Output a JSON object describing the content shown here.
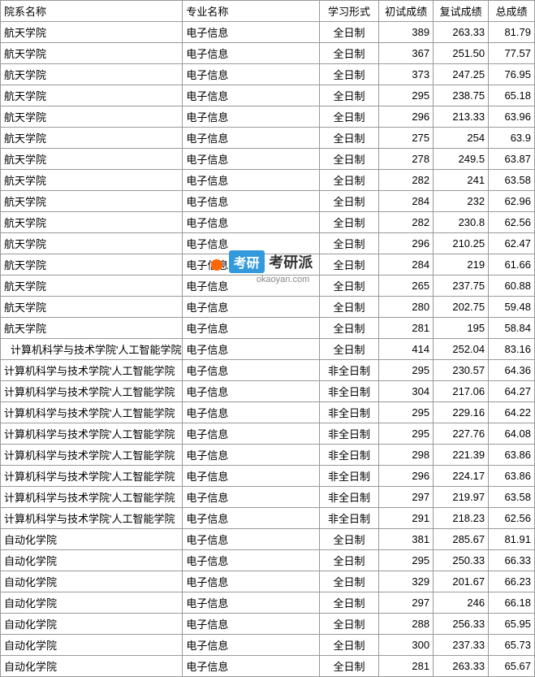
{
  "headers": {
    "dept": "院系名称",
    "major": "专业名称",
    "mode": "学习形式",
    "score1": "初试成绩",
    "score2": "复试成绩",
    "total": "总成绩"
  },
  "rows": [
    {
      "dept": "航天学院",
      "major": "电子信息",
      "mode": "全日制",
      "s1": "389",
      "s2": "263.33",
      "tot": "81.79",
      "indent": false
    },
    {
      "dept": "航天学院",
      "major": "电子信息",
      "mode": "全日制",
      "s1": "367",
      "s2": "251.50",
      "tot": "77.57",
      "indent": false
    },
    {
      "dept": "航天学院",
      "major": "电子信息",
      "mode": "全日制",
      "s1": "373",
      "s2": "247.25",
      "tot": "76.95",
      "indent": false
    },
    {
      "dept": "航天学院",
      "major": "电子信息",
      "mode": "全日制",
      "s1": "295",
      "s2": "238.75",
      "tot": "65.18",
      "indent": false
    },
    {
      "dept": "航天学院",
      "major": "电子信息",
      "mode": "全日制",
      "s1": "296",
      "s2": "213.33",
      "tot": "63.96",
      "indent": false
    },
    {
      "dept": "航天学院",
      "major": "电子信息",
      "mode": "全日制",
      "s1": "275",
      "s2": "254",
      "tot": "63.9",
      "indent": false
    },
    {
      "dept": "航天学院",
      "major": "电子信息",
      "mode": "全日制",
      "s1": "278",
      "s2": "249.5",
      "tot": "63.87",
      "indent": false
    },
    {
      "dept": "航天学院",
      "major": "电子信息",
      "mode": "全日制",
      "s1": "282",
      "s2": "241",
      "tot": "63.58",
      "indent": false
    },
    {
      "dept": "航天学院",
      "major": "电子信息",
      "mode": "全日制",
      "s1": "284",
      "s2": "232",
      "tot": "62.96",
      "indent": false
    },
    {
      "dept": "航天学院",
      "major": "电子信息",
      "mode": "全日制",
      "s1": "282",
      "s2": "230.8",
      "tot": "62.56",
      "indent": false
    },
    {
      "dept": "航天学院",
      "major": "电子信息",
      "mode": "全日制",
      "s1": "296",
      "s2": "210.25",
      "tot": "62.47",
      "indent": false
    },
    {
      "dept": "航天学院",
      "major": "电子信息",
      "mode": "全日制",
      "s1": "284",
      "s2": "219",
      "tot": "61.66",
      "indent": false
    },
    {
      "dept": "航天学院",
      "major": "电子信息",
      "mode": "全日制",
      "s1": "265",
      "s2": "237.75",
      "tot": "60.88",
      "indent": false
    },
    {
      "dept": "航天学院",
      "major": "电子信息",
      "mode": "全日制",
      "s1": "280",
      "s2": "202.75",
      "tot": "59.48",
      "indent": false
    },
    {
      "dept": "航天学院",
      "major": "电子信息",
      "mode": "全日制",
      "s1": "281",
      "s2": "195",
      "tot": "58.84",
      "indent": false
    },
    {
      "dept": "计算机科学与技术学院'人工智能学院",
      "major": "电子信息",
      "mode": "全日制",
      "s1": "414",
      "s2": "252.04",
      "tot": "83.16",
      "indent": true
    },
    {
      "dept": "计算机科学与技术学院'人工智能学院",
      "major": "电子信息",
      "mode": "非全日制",
      "s1": "295",
      "s2": "230.57",
      "tot": "64.36",
      "indent": false
    },
    {
      "dept": "计算机科学与技术学院'人工智能学院",
      "major": "电子信息",
      "mode": "非全日制",
      "s1": "304",
      "s2": "217.06",
      "tot": "64.27",
      "indent": false
    },
    {
      "dept": "计算机科学与技术学院'人工智能学院",
      "major": "电子信息",
      "mode": "非全日制",
      "s1": "295",
      "s2": "229.16",
      "tot": "64.22",
      "indent": false
    },
    {
      "dept": "计算机科学与技术学院'人工智能学院",
      "major": "电子信息",
      "mode": "非全日制",
      "s1": "295",
      "s2": "227.76",
      "tot": "64.08",
      "indent": false
    },
    {
      "dept": "计算机科学与技术学院'人工智能学院",
      "major": "电子信息",
      "mode": "非全日制",
      "s1": "298",
      "s2": "221.39",
      "tot": "63.86",
      "indent": false
    },
    {
      "dept": "计算机科学与技术学院'人工智能学院",
      "major": "电子信息",
      "mode": "非全日制",
      "s1": "296",
      "s2": "224.17",
      "tot": "63.86",
      "indent": false
    },
    {
      "dept": "计算机科学与技术学院'人工智能学院",
      "major": "电子信息",
      "mode": "非全日制",
      "s1": "297",
      "s2": "219.97",
      "tot": "63.58",
      "indent": false
    },
    {
      "dept": "计算机科学与技术学院'人工智能学院",
      "major": "电子信息",
      "mode": "非全日制",
      "s1": "291",
      "s2": "218.23",
      "tot": "62.56",
      "indent": false
    },
    {
      "dept": "自动化学院",
      "major": "电子信息",
      "mode": "全日制",
      "s1": "381",
      "s2": "285.67",
      "tot": "81.91",
      "indent": false
    },
    {
      "dept": "自动化学院",
      "major": "电子信息",
      "mode": "全日制",
      "s1": "295",
      "s2": "250.33",
      "tot": "66.33",
      "indent": false
    },
    {
      "dept": "自动化学院",
      "major": "电子信息",
      "mode": "全日制",
      "s1": "329",
      "s2": "201.67",
      "tot": "66.23",
      "indent": false
    },
    {
      "dept": "自动化学院",
      "major": "电子信息",
      "mode": "全日制",
      "s1": "297",
      "s2": "246",
      "tot": "66.18",
      "indent": false
    },
    {
      "dept": "自动化学院",
      "major": "电子信息",
      "mode": "全日制",
      "s1": "288",
      "s2": "256.33",
      "tot": "65.95",
      "indent": false
    },
    {
      "dept": "自动化学院",
      "major": "电子信息",
      "mode": "全日制",
      "s1": "300",
      "s2": "237.33",
      "tot": "65.73",
      "indent": false
    },
    {
      "dept": "自动化学院",
      "major": "电子信息",
      "mode": "全日制",
      "s1": "281",
      "s2": "263.33",
      "tot": "65.67",
      "indent": false
    }
  ],
  "watermark": {
    "badge": "考研",
    "text": "考研派",
    "url": "okaoyan.com"
  }
}
